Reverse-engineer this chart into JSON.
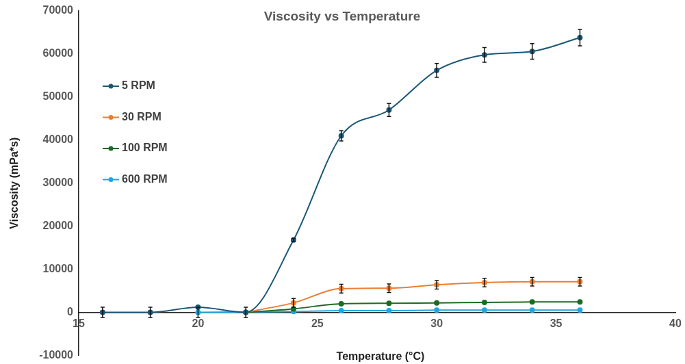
{
  "chart_data": {
    "type": "line",
    "title": "Viscosity vs Temperature",
    "xlabel": "Temperature (°C)",
    "ylabel": "Viscosity (mPa*s)",
    "x": [
      16,
      18,
      20,
      22,
      24,
      26,
      28,
      30,
      32,
      34,
      36
    ],
    "series": [
      {
        "name": "5 RPM",
        "color": "#1a5777",
        "values": [
          0,
          0,
          1200,
          0,
          16800,
          41000,
          47000,
          56200,
          59800,
          60600,
          63800
        ],
        "errors": [
          1200,
          1200,
          null,
          1200,
          400,
          1200,
          1500,
          1600,
          1700,
          1800,
          1900
        ]
      },
      {
        "name": "30 RPM",
        "color": "#ed7d31",
        "values": [
          null,
          null,
          null,
          0,
          2200,
          5500,
          5600,
          6400,
          6900,
          7100,
          7100
        ],
        "errors": [
          null,
          null,
          null,
          null,
          1000,
          1000,
          1000,
          1000,
          1000,
          1000,
          1000
        ]
      },
      {
        "name": "100 RPM",
        "color": "#1e6b24",
        "values": [
          null,
          null,
          null,
          0,
          800,
          2000,
          2100,
          2200,
          2300,
          2400,
          2400
        ]
      },
      {
        "name": "600 RPM",
        "color": "#1ea7e1",
        "values": [
          null,
          null,
          0,
          null,
          200,
          400,
          400,
          500,
          500,
          500,
          500
        ],
        "errors": [
          null,
          null,
          1200,
          null,
          null,
          null,
          null,
          null,
          null,
          null,
          null
        ]
      }
    ],
    "xlim": [
      15,
      40
    ],
    "xticks": [
      15,
      20,
      25,
      30,
      35,
      40
    ],
    "ylim": [
      -10000,
      70000
    ],
    "yticks": [
      -10000,
      0,
      10000,
      20000,
      30000,
      40000,
      50000,
      60000,
      70000
    ],
    "legend": "top left",
    "marker": "circle",
    "line_style": "solid",
    "grid": false
  }
}
